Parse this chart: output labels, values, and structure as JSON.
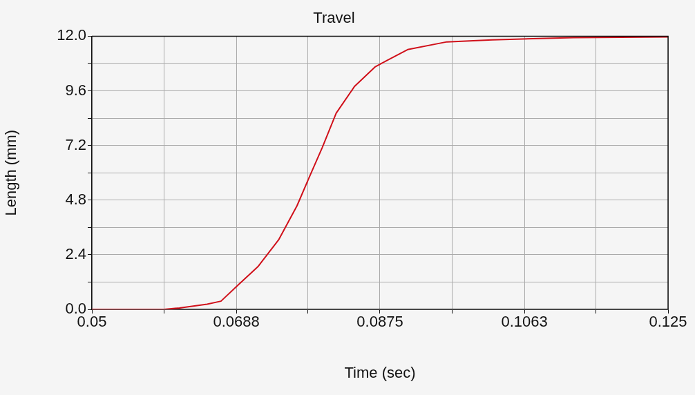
{
  "chart_data": {
    "type": "line",
    "title": "Travel",
    "xlabel": "Time (sec)",
    "ylabel": "Length (mm)",
    "x": [
      0.05,
      0.0594,
      0.0614,
      0.065,
      0.0668,
      0.0692,
      0.0716,
      0.0743,
      0.0767,
      0.0782,
      0.08,
      0.0818,
      0.0842,
      0.0869,
      0.0884,
      0.0911,
      0.0962,
      0.1021,
      0.1127,
      0.125
    ],
    "series": [
      {
        "color": "#d0101a",
        "values": [
          0,
          0,
          0.06,
          0.23,
          0.36,
          1.12,
          1.87,
          3.05,
          4.55,
          5.73,
          7.12,
          8.62,
          9.8,
          10.66,
          10.93,
          11.41,
          11.75,
          11.84,
          11.94,
          11.97
        ]
      }
    ],
    "xlim": [
      0.05,
      0.125
    ],
    "xticks": [
      0.05,
      {
        "value": 0.059375,
        "label": null
      },
      0.0688,
      {
        "value": 0.078125,
        "label": null
      },
      0.0875,
      {
        "value": 0.096875,
        "label": null
      },
      0.1063,
      {
        "value": 0.115625,
        "label": null
      },
      0.125
    ],
    "ylim": [
      0,
      12
    ],
    "yticks": [
      {
        "value": 0,
        "label": "0.0"
      },
      {
        "value": 1.2,
        "label": null
      },
      2.4,
      {
        "value": 3.6,
        "label": null
      },
      4.8,
      {
        "value": 6,
        "label": null
      },
      7.2,
      {
        "value": 8.4,
        "label": null
      },
      9.6,
      {
        "value": 10.8,
        "label": null
      },
      {
        "value": 12,
        "label": "12.0"
      }
    ],
    "grid": true,
    "legend": false,
    "marker": "none",
    "line_style": "solid"
  }
}
